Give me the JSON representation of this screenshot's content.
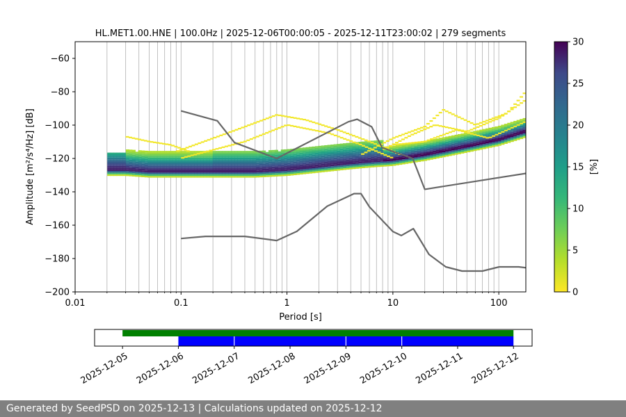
{
  "chart_data": [
    {
      "type": "heatmap",
      "title": "HL.MET1.00.HNE | 100.0Hz | 2025-12-06T00:00:05 - 2025-12-11T23:00:02 | 279 segments",
      "xlabel": "Period [s]",
      "ylabel": "Amplitude [m²/s⁴/Hz] [dB]",
      "x_scale": "log",
      "xlim": [
        0.01,
        180
      ],
      "ylim": [
        -200,
        -50
      ],
      "x_ticks": [
        "0.01",
        "0.1",
        "1",
        "10",
        "100"
      ],
      "y_ticks": [
        "−200",
        "−180",
        "−160",
        "−140",
        "−120",
        "−100",
        "−80",
        "−60"
      ],
      "grid": "vertical",
      "colorbar": {
        "label": "[%]",
        "range": [
          0,
          30
        ],
        "ticks": [
          "0",
          "5",
          "10",
          "15",
          "20",
          "25",
          "30"
        ],
        "colormap": "viridis_r"
      },
      "mode_curve": {
        "period": [
          0.03,
          0.05,
          0.1,
          0.2,
          0.5,
          1.0,
          2.0,
          4.0,
          6.0,
          10.0,
          20.0,
          50.0,
          100.0,
          180.0
        ],
        "amplitude": [
          -127,
          -128,
          -128,
          -128,
          -128,
          -127,
          -125,
          -123,
          -122,
          -121,
          -118,
          -113,
          -109,
          -104
        ]
      },
      "noise_models": {
        "color": "#666666",
        "high": {
          "period": [
            0.1,
            0.22,
            0.32,
            0.8,
            3.8,
            4.6,
            6.3,
            7.9,
            15.4,
            20.0,
            354.8
          ],
          "amplitude": [
            -91.5,
            -97.4,
            -110.5,
            -120.0,
            -98.0,
            -96.5,
            -101.0,
            -113.5,
            -120.0,
            -138.5,
            -126.0
          ]
        },
        "low": {
          "period": [
            0.1,
            0.17,
            0.4,
            0.8,
            1.24,
            2.4,
            4.3,
            5.0,
            6.0,
            10.0,
            12.0,
            15.6,
            21.9,
            31.6,
            45.0,
            70.0,
            101.0,
            154.0,
            328.0
          ],
          "amplitude": [
            -168.0,
            -166.7,
            -166.7,
            -169.2,
            -163.7,
            -148.6,
            -141.1,
            -141.1,
            -149.0,
            -163.8,
            -166.2,
            -162.1,
            -177.5,
            -185.0,
            -187.5,
            -187.5,
            -185.0,
            -185.0,
            -187.5
          ]
        }
      }
    },
    {
      "type": "timeline",
      "x_ticks": [
        "2025-12-05",
        "2025-12-06",
        "2025-12-07",
        "2025-12-08",
        "2025-12-09",
        "2025-12-10",
        "2025-12-11",
        "2025-12-12"
      ],
      "xlim": [
        "2025-12-04T12:00",
        "2025-12-12T08:00"
      ],
      "series": [
        {
          "color": "#008000",
          "segments": [
            [
              "2025-12-05T00:00",
              "2025-12-12T00:00"
            ]
          ]
        },
        {
          "color": "#0000ff",
          "segments": [
            [
              "2025-12-06T00:00",
              "2025-12-06T23:50"
            ],
            [
              "2025-12-07T00:10",
              "2025-12-08T23:50"
            ],
            [
              "2025-12-09T00:10",
              "2025-12-09T23:50"
            ],
            [
              "2025-12-10T00:10",
              "2025-12-12T00:00"
            ]
          ]
        }
      ]
    }
  ],
  "footer": "Generated by SeedPSD on 2025-12-13 | Calculations updated on 2025-12-12"
}
